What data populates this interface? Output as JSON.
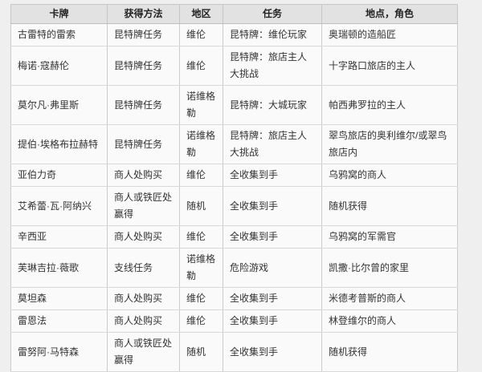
{
  "table": {
    "columns": [
      "卡牌",
      "获得方法",
      "地区",
      "任务",
      "地点，角色"
    ],
    "rows": [
      [
        "古雷特的雷索",
        "昆特牌任务",
        "维伦",
        "昆特牌：维伦玩家",
        "奥瑞顿的造船匠"
      ],
      [
        "梅诺·寇赫伦",
        "昆特牌任务",
        "维伦",
        "昆特牌：旅店主人大挑战",
        "十字路口旅店的主人"
      ],
      [
        "莫尔凡·弗里斯",
        "昆特牌任务",
        "诺维格勒",
        "昆特牌：大城玩家",
        "帕西弗罗拉的主人"
      ],
      [
        "提伯·埃格布拉赫特",
        "昆特牌任务",
        "诺维格勒",
        "昆特牌：旅店主人大挑战",
        "翠鸟旅店的奥利维尔/或翠鸟旅店内"
      ],
      [
        "亚伯力奇",
        "商人处购买",
        "维伦",
        "全收集到手",
        "乌鸦窝的商人"
      ],
      [
        "艾希蕾·瓦·阿纳兴",
        "商人或铁匠处赢得",
        "随机",
        "全收集到手",
        "随机获得"
      ],
      [
        "辛西亚",
        "商人处购买",
        "维伦",
        "全收集到手",
        "乌鸦窝的军需官"
      ],
      [
        "芙琳吉拉·薇歌",
        "支线任务",
        "诺维格勒",
        "危险游戏",
        "凯撒·比尔曾的家里"
      ],
      [
        "莫坦森",
        "商人处购买",
        "维伦",
        "全收集到手",
        "米德考普斯的商人"
      ],
      [
        "雷恩法",
        "商人处购买",
        "维伦",
        "全收集到手",
        "林登维尔的商人"
      ],
      [
        "雷努阿·马特森",
        "商人或铁匠处赢得",
        "随机",
        "全收集到手",
        "随机获得"
      ]
    ]
  },
  "colors": {
    "page_bg": "#efefef",
    "header_bg": "#e2e2e2",
    "row_bg": "#fafafa",
    "border": "#cbcbcb",
    "header_text": "#222222",
    "body_text": "#333333"
  }
}
